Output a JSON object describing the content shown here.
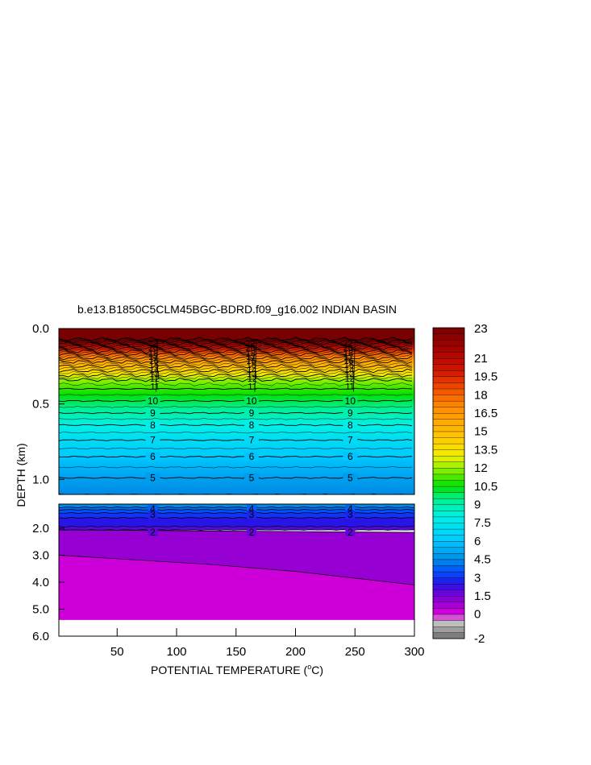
{
  "chart_data": {
    "type": "heatmap",
    "title": "b.e13.B1850C5CLM45BGC-BDRD.f09_g16.002 INDIAN BASIN",
    "xlabel": "POTENTIAL TEMPERATURE (",
    "xlabel_degree": "o",
    "xlabel_unit": "C)",
    "ylabel": "DEPTH (km)",
    "x_ticks": [
      50,
      100,
      150,
      200,
      250,
      300
    ],
    "xlim": [
      1,
      300
    ],
    "upper_panel": {
      "ylim": [
        0.0,
        1.1
      ],
      "y_ticks": [
        0.0,
        0.5,
        1.0
      ],
      "y_tick_labels": [
        "0.0",
        "0.5",
        "1.0"
      ],
      "contours": [
        {
          "value": 10,
          "depth": 0.48,
          "label": "10"
        },
        {
          "value": 9,
          "depth": 0.56,
          "label": "9"
        },
        {
          "value": 8,
          "depth": 0.64,
          "label": "8"
        },
        {
          "value": 7,
          "depth": 0.74,
          "label": "7"
        },
        {
          "value": 6,
          "depth": 0.85,
          "label": "6"
        },
        {
          "value": 5,
          "depth": 0.99,
          "label": "5"
        }
      ],
      "crowded_labels": [
        "22",
        "20",
        "18",
        "17",
        "16",
        "15",
        "14",
        "13",
        "12",
        "11"
      ]
    },
    "lower_panel": {
      "ylim": [
        1.0,
        6.0
      ],
      "y_ticks": [
        2.0,
        3.0,
        4.0,
        5.0,
        6.0
      ],
      "y_tick_labels": [
        "2.0",
        "3.0",
        "4.0",
        "5.0",
        "6.0"
      ],
      "contours": [
        {
          "value": 4,
          "label": "4"
        },
        {
          "value": 3,
          "label": "3"
        },
        {
          "value": 2,
          "label": "2"
        }
      ],
      "zero_isotherm_depth": {
        "x": [
          1,
          130,
          200,
          250,
          300
        ],
        "y": [
          3.0,
          3.35,
          3.6,
          3.85,
          4.1
        ]
      },
      "seafloor_depth": 5.4
    },
    "contour_label_x": [
      80,
      163,
      246
    ],
    "colorbar": {
      "min": -2,
      "max": 23.5,
      "step": 0.5,
      "labels": [
        "23",
        "21",
        "19.5",
        "18",
        "16.5",
        "15",
        "13.5",
        "12",
        "10.5",
        "9",
        "7.5",
        "6",
        "4.5",
        "3",
        "1.5",
        "0",
        "-2"
      ],
      "label_values": [
        23,
        21,
        19.5,
        18,
        16.5,
        15,
        13.5,
        12,
        10.5,
        9,
        7.5,
        6,
        4.5,
        3,
        1.5,
        0,
        -2
      ]
    },
    "background": "#ffffff"
  }
}
